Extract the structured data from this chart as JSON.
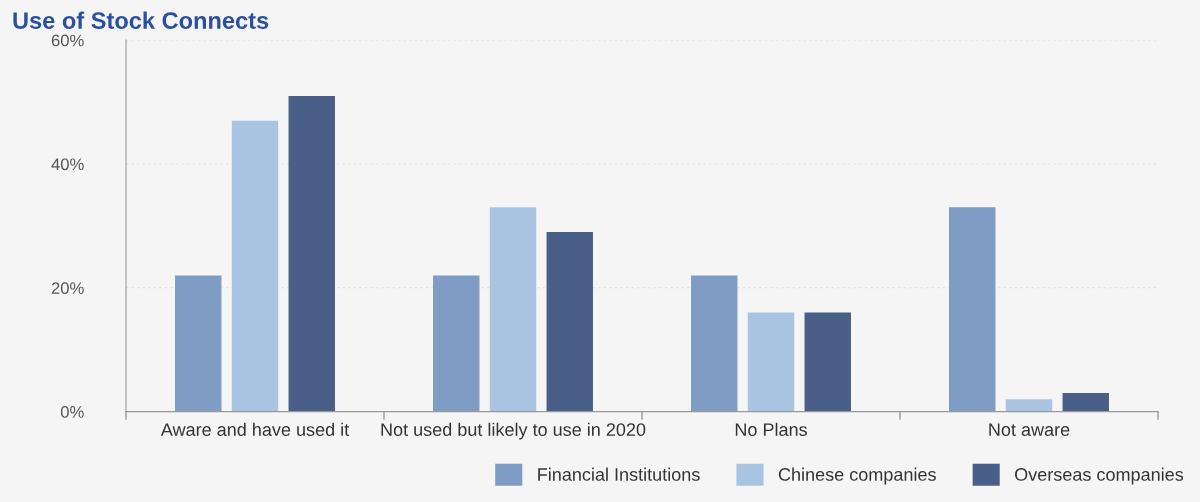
{
  "chart_data": {
    "type": "bar",
    "title": "Use of Stock Connects",
    "categories": [
      "Aware and have used it",
      "Not used but likely to use in 2020",
      "No Plans",
      "Not aware"
    ],
    "series": [
      {
        "name": "Financial Institutions",
        "color": "#7f9cc4",
        "values": [
          22,
          22,
          22,
          33
        ]
      },
      {
        "name": "Chinese companies",
        "color": "#a8c4e0",
        "values": [
          47,
          33,
          16,
          2
        ]
      },
      {
        "name": "Overseas companies",
        "color": "#4a5f88",
        "values": [
          51,
          29,
          16,
          3
        ]
      }
    ],
    "ylim": [
      0,
      60
    ],
    "yticks": [
      {
        "value": 0,
        "label": "0%"
      },
      {
        "value": 20,
        "label": "20%"
      },
      {
        "value": 40,
        "label": "40%"
      },
      {
        "value": 60,
        "label": "60%"
      }
    ],
    "grid": "y",
    "legend": "bottom"
  }
}
